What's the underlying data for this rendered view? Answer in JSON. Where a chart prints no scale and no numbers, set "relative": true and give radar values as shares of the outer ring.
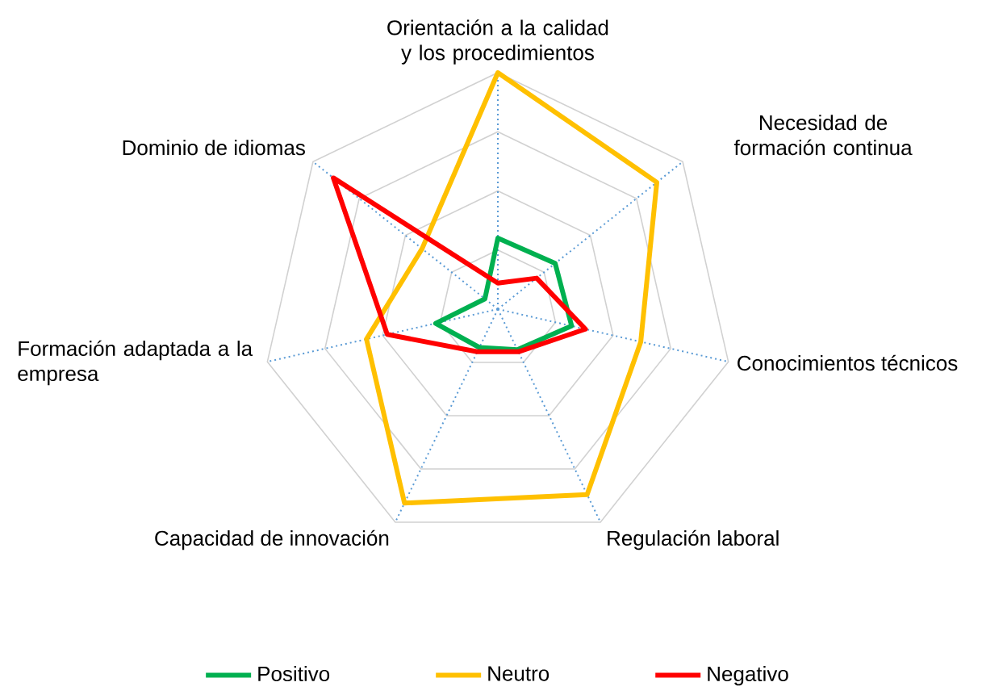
{
  "chart_data": {
    "type": "radar",
    "relative": true,
    "grid": true,
    "legend": "bottom",
    "line_style": "solid",
    "marker": "none",
    "categories": [
      "Orientación a la calidad y los procedimientos",
      "Necesidad de formación continua",
      "Conocimientos técnicos",
      "Regulación laboral",
      "Capacidad de innovación",
      "Formación adaptada a la empresa",
      "Dominio de idiomas"
    ],
    "series": [
      {
        "name": "Positivo",
        "color": "#00b050",
        "values": [
          0.3,
          0.31,
          0.32,
          0.19,
          0.18,
          0.27,
          0.07
        ]
      },
      {
        "name": "Neutro",
        "color": "#ffc000",
        "values": [
          1.0,
          0.86,
          0.62,
          0.87,
          0.91,
          0.57,
          0.41
        ]
      },
      {
        "name": "Negativo",
        "color": "#ff0000",
        "values": [
          0.11,
          0.21,
          0.38,
          0.2,
          0.2,
          0.48,
          0.89
        ]
      }
    ]
  }
}
